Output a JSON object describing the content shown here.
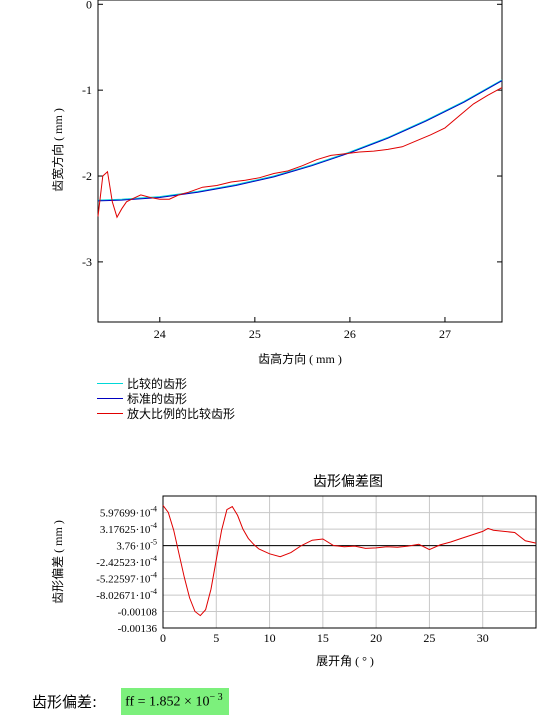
{
  "chart_data": [
    {
      "type": "line",
      "title": "",
      "xlabel": "齿高方向 ( mm )",
      "ylabel": "齿宽方向 ( mm )",
      "xlim": [
        23.35,
        27.6
      ],
      "ylim": [
        -3.7,
        0.05
      ],
      "xticks": [
        "24",
        "25",
        "26",
        "27"
      ],
      "yticks": [
        "0",
        "-1",
        "-2",
        "-3"
      ],
      "grid": false,
      "legend_position": "bottom-left",
      "series": [
        {
          "name": "比较的齿形",
          "color": "#00d8d8",
          "x": [
            23.35,
            23.6,
            24.0,
            24.4,
            24.8,
            25.2,
            25.6,
            26.0,
            26.4,
            26.8,
            27.2,
            27.6
          ],
          "y": [
            -2.28,
            -2.27,
            -2.24,
            -2.18,
            -2.1,
            -2.0,
            -1.87,
            -1.72,
            -1.55,
            -1.35,
            -1.13,
            -0.88
          ]
        },
        {
          "name": "标准的齿形",
          "color": "#0000c0",
          "x": [
            23.35,
            23.6,
            24.0,
            24.4,
            24.8,
            25.2,
            25.6,
            26.0,
            26.4,
            26.8,
            27.2,
            27.6
          ],
          "y": [
            -2.29,
            -2.28,
            -2.25,
            -2.19,
            -2.11,
            -2.01,
            -1.88,
            -1.73,
            -1.56,
            -1.36,
            -1.14,
            -0.89
          ]
        },
        {
          "name": "放大比例的比较齿形",
          "color": "#e00000",
          "x": [
            23.35,
            23.4,
            23.45,
            23.5,
            23.55,
            23.6,
            23.65,
            23.72,
            23.8,
            23.9,
            24.0,
            24.1,
            24.2,
            24.3,
            24.45,
            24.6,
            24.75,
            24.9,
            25.05,
            25.2,
            25.35,
            25.5,
            25.65,
            25.8,
            25.95,
            26.1,
            26.25,
            26.4,
            26.55,
            26.7,
            26.85,
            27.0,
            27.15,
            27.3,
            27.45,
            27.6
          ],
          "y": [
            -2.47,
            -2.0,
            -1.95,
            -2.3,
            -2.48,
            -2.38,
            -2.3,
            -2.26,
            -2.22,
            -2.25,
            -2.27,
            -2.27,
            -2.22,
            -2.19,
            -2.13,
            -2.11,
            -2.07,
            -2.05,
            -2.02,
            -1.97,
            -1.94,
            -1.88,
            -1.81,
            -1.76,
            -1.74,
            -1.72,
            -1.71,
            -1.69,
            -1.66,
            -1.59,
            -1.52,
            -1.44,
            -1.3,
            -1.16,
            -1.06,
            -0.97
          ]
        }
      ]
    },
    {
      "type": "line",
      "title": "齿形偏差图",
      "xlabel": "展开角 ( ° )",
      "ylabel": "齿形偏差 ( mm )",
      "xlim": [
        0,
        35
      ],
      "ylim": [
        -0.00136,
        0.00088
      ],
      "xticks": [
        "0",
        "5",
        "10",
        "15",
        "20",
        "25",
        "30"
      ],
      "yticks": [
        "5.97699·10",
        "3.17625·10",
        "3.76·10",
        "-2.42523·10",
        "-5.22597·10",
        "-8.02671·10",
        "-0.00108",
        "-0.00136"
      ],
      "ytick_exponents": [
        "-4",
        "-4",
        "-5",
        "-4",
        "-4",
        "-4",
        "",
        ""
      ],
      "ytick_values": [
        0.000597699,
        0.000317625,
        3.76e-05,
        -0.000242523,
        -0.000522597,
        -0.000802671,
        -0.00108,
        -0.00136
      ],
      "grid": true,
      "reference_line": 3.76e-05,
      "series": [
        {
          "color": "#e00000",
          "x": [
            0,
            0.5,
            1,
            1.5,
            2,
            2.5,
            3,
            3.5,
            4,
            4.5,
            5,
            5.5,
            6,
            6.5,
            7,
            7.5,
            8,
            8.5,
            9,
            10,
            11,
            12,
            13,
            14,
            15,
            16,
            17,
            18,
            19,
            20,
            21,
            22,
            23,
            24,
            25,
            26,
            27,
            28,
            29,
            30,
            30.5,
            31,
            32,
            33,
            34,
            35
          ],
          "y": [
            0.00072,
            0.0006,
            0.0003,
            -0.0001,
            -0.0005,
            -0.00085,
            -0.00108,
            -0.00115,
            -0.00105,
            -0.0007,
            -0.0002,
            0.0003,
            0.00065,
            0.0007,
            0.00055,
            0.00032,
            0.00016,
            6e-05,
            -2e-05,
            -0.0001,
            -0.00015,
            -8e-05,
            4e-05,
            0.00013,
            0.00015,
            4e-05,
            2e-05,
            3e-05,
            -1e-05,
            0.0,
            2e-05,
            1e-05,
            3e-05,
            6e-05,
            -3e-05,
            5e-05,
            0.0001,
            0.00016,
            0.00022,
            0.00028,
            0.00033,
            0.0003,
            0.00028,
            0.00026,
            0.00012,
            8e-05
          ]
        }
      ]
    }
  ],
  "result": {
    "label": "齿形偏差:",
    "var": "ff",
    "equals": "=",
    "mantissa": "1.852 × 10",
    "exponent": "− 3"
  }
}
